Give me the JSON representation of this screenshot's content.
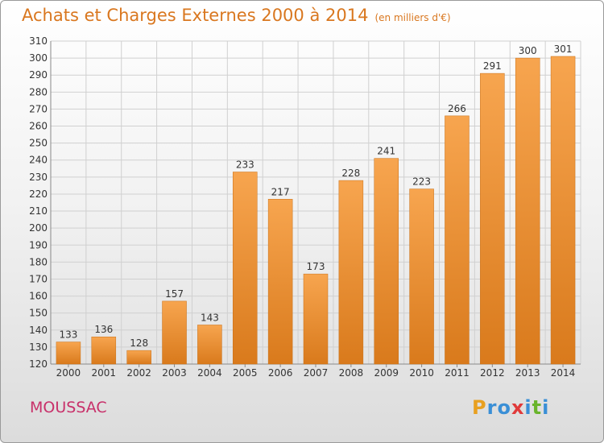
{
  "page": {
    "title": "Achats et Charges Externes 2000 à 2014",
    "unit": "(en milliers d'€)",
    "commune": "MOUSSAC",
    "logo": {
      "letters": [
        "P",
        "r",
        "o",
        "x",
        "i",
        "t",
        "i"
      ],
      "colors": [
        "#e8a020",
        "#3a8fd6",
        "#3a8fd6",
        "#e03a3a",
        "#3a8fd6",
        "#6ab42c",
        "#3a8fd6"
      ]
    }
  },
  "colors": {
    "bar_top": "#f7a54f",
    "bar_bottom": "#d97a1c",
    "grid": "#d0d0d0",
    "title": "#d9771f",
    "commune": "#c8306a"
  },
  "chart_data": {
    "type": "bar",
    "title": "Achats et Charges Externes 2000 à 2014",
    "categories": [
      "2000",
      "2001",
      "2002",
      "2003",
      "2004",
      "2005",
      "2006",
      "2007",
      "2008",
      "2009",
      "2010",
      "2011",
      "2012",
      "2013",
      "2014"
    ],
    "values": [
      133,
      136,
      128,
      157,
      143,
      233,
      217,
      173,
      228,
      241,
      223,
      266,
      291,
      300,
      301
    ],
    "ylim": [
      120,
      310
    ],
    "yticks": [
      120,
      130,
      140,
      150,
      160,
      170,
      180,
      190,
      200,
      210,
      220,
      230,
      240,
      250,
      260,
      270,
      280,
      290,
      300,
      310
    ],
    "grid": true,
    "data_labels": true
  }
}
